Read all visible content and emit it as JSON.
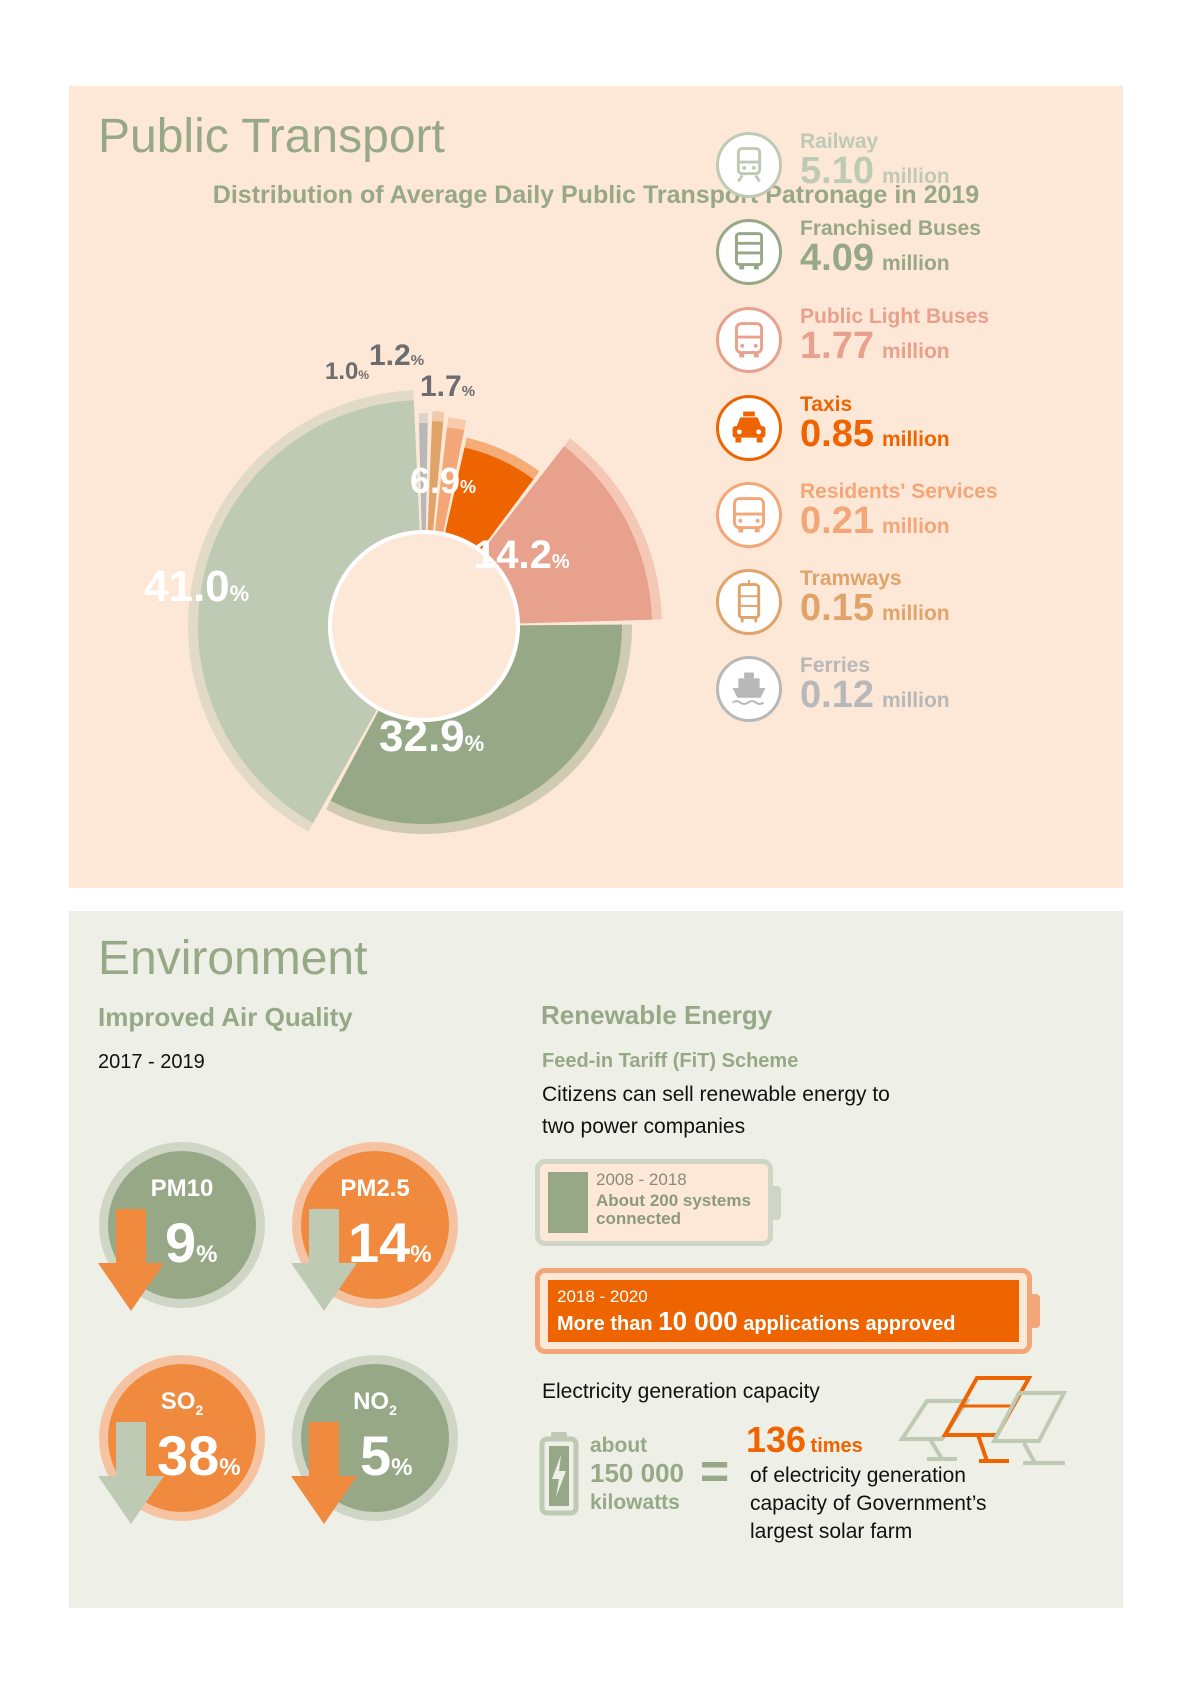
{
  "public_transport": {
    "heading": "Public Transport",
    "chart_title": "Distribution of Average Daily Public Transport Patronage in 2019"
  },
  "chart_data": {
    "type": "pie",
    "title": "Distribution of Average Daily Public Transport Patronage in 2019",
    "categories": [
      "Railway",
      "Franchised Buses",
      "Public Light Buses",
      "Taxis",
      "Residents' Services",
      "Tramways",
      "Ferries"
    ],
    "values": [
      41.0,
      32.9,
      14.2,
      6.9,
      1.7,
      1.2,
      1.0
    ],
    "labels": [
      "41.0",
      "32.9",
      "14.2",
      "6.9",
      "1.7",
      "1.2",
      "1.0"
    ],
    "percent_sign": "%",
    "colors": [
      "#bfcab4",
      "#97a887",
      "#e8a18c",
      "#ee6400",
      "#f3a677",
      "#e0a46a",
      "#b8b8b8"
    ],
    "legend": [
      {
        "name": "Railway",
        "value": "5.10",
        "unit": "million",
        "color": "#bfcab4",
        "icon": "train-icon"
      },
      {
        "name": "Franchised Buses",
        "value": "4.09",
        "unit": "million",
        "color": "#97a887",
        "icon": "double-decker-bus-icon"
      },
      {
        "name": "Public Light Buses",
        "value": "1.77",
        "unit": "million",
        "color": "#e8a18c",
        "icon": "minibus-icon"
      },
      {
        "name": "Taxis",
        "value": "0.85",
        "unit": "million",
        "color": "#ee6400",
        "icon": "taxi-icon"
      },
      {
        "name": "Residents' Services",
        "value": "0.21",
        "unit": "million",
        "color": "#f3a677",
        "icon": "coach-icon"
      },
      {
        "name": "Tramways",
        "value": "0.15",
        "unit": "million",
        "color": "#e0a46a",
        "icon": "tram-icon"
      },
      {
        "name": "Ferries",
        "value": "0.12",
        "unit": "million",
        "color": "#b8b8b8",
        "icon": "ferry-icon"
      }
    ]
  },
  "environment": {
    "heading": "Environment",
    "air": {
      "title": "Improved Air Quality",
      "period": "2017 - 2019",
      "pollutants": [
        {
          "name": "PM10",
          "value": "9",
          "unit": "%"
        },
        {
          "name": "PM2.5",
          "value": "14",
          "unit": "%"
        },
        {
          "name": "SO",
          "sub": "2",
          "value": "38",
          "unit": "%"
        },
        {
          "name": "NO",
          "sub": "2",
          "value": "5",
          "unit": "%"
        }
      ]
    },
    "renewable": {
      "title": "Renewable Energy",
      "scheme": "Feed-in Tariff (FiT) Scheme",
      "desc_line1": "Citizens can sell renewable energy to",
      "desc_line2": "two power companies",
      "battery1_period": "2008 - 2018",
      "battery1_line1": "About 200 systems",
      "battery1_line2": "connected",
      "battery2_period": "2018 - 2020",
      "battery2_pre": "More than",
      "battery2_number": "10 000",
      "battery2_post": "applications approved",
      "capacity_title": "Electricity generation capacity",
      "cap_about": "about",
      "cap_number": "150 000",
      "cap_unit": "kilowatts",
      "equals": "=",
      "times_number": "136",
      "times_word": "times",
      "times_line1": "of electricity generation",
      "times_line2": "capacity of Government’s",
      "times_line3": "largest solar farm"
    }
  }
}
